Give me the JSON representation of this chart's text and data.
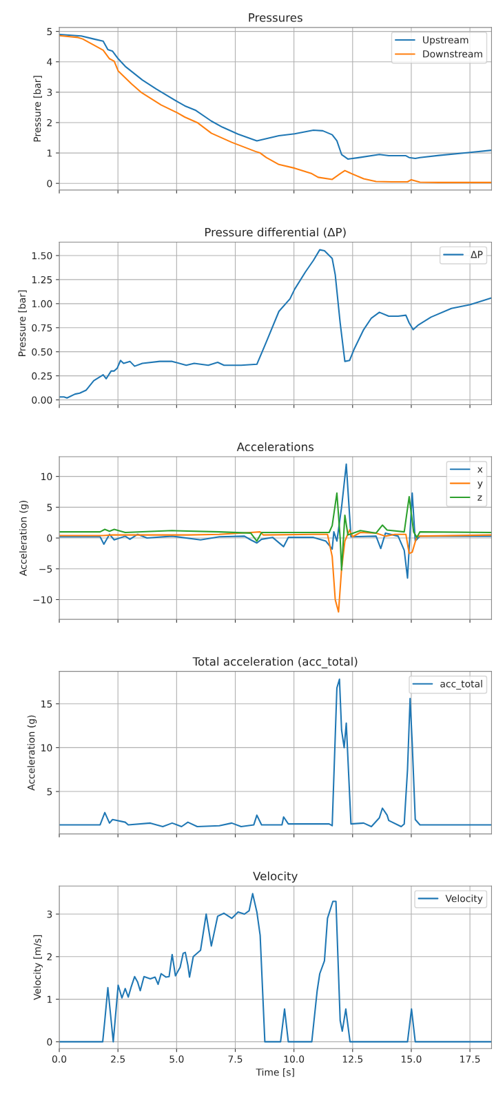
{
  "chart_data": [
    {
      "type": "line",
      "title": "Pressures",
      "ylabel": "Pressure [bar]",
      "xlim": [
        0,
        18.42
      ],
      "xticks": [
        {
          "value": 0,
          "label": null
        },
        {
          "value": 2.5,
          "label": null
        },
        {
          "value": 5,
          "label": null
        },
        {
          "value": 7.5,
          "label": null
        },
        {
          "value": 10,
          "label": null
        },
        {
          "value": 12.5,
          "label": null
        },
        {
          "value": 15,
          "label": null
        },
        {
          "value": 17.5,
          "label": null
        }
      ],
      "ylim": [
        -0.22,
        5.13
      ],
      "yticks": [
        0,
        1,
        2,
        3,
        4,
        5
      ],
      "tick_labels": "y",
      "grid": true,
      "legend": "top right",
      "series": [
        {
          "name": "Upstream",
          "color": "#1f77b4",
          "x": [
            0,
            0.94,
            1.47,
            1.87,
            2.07,
            2.27,
            2.51,
            2.81,
            3.54,
            4.14,
            5.01,
            5.35,
            5.82,
            6.48,
            6.95,
            7.62,
            8.42,
            9.36,
            10.03,
            10.83,
            11.23,
            11.63,
            11.83,
            12.03,
            12.3,
            12.7,
            13.64,
            14.04,
            14.77,
            14.91,
            15.17,
            15.37,
            16.18,
            17.51,
            18.42
          ],
          "values": [
            4.9,
            4.85,
            4.75,
            4.68,
            4.4,
            4.35,
            4.1,
            3.85,
            3.4,
            3.1,
            2.7,
            2.55,
            2.4,
            2.05,
            1.85,
            1.62,
            1.4,
            1.57,
            1.63,
            1.75,
            1.73,
            1.6,
            1.4,
            0.95,
            0.8,
            0.84,
            0.95,
            0.91,
            0.91,
            0.85,
            0.82,
            0.85,
            0.92,
            1.02,
            1.09
          ]
        },
        {
          "name": "Downstream",
          "color": "#ff7f0e",
          "x": [
            0,
            0.8,
            1.0,
            1.47,
            1.87,
            2.14,
            2.34,
            2.51,
            3.07,
            3.48,
            4.34,
            5.01,
            5.35,
            5.88,
            6.48,
            7.35,
            8.36,
            8.56,
            8.82,
            9.36,
            10.03,
            10.76,
            11.03,
            11.63,
            11.97,
            12.17,
            12.37,
            12.97,
            13.5,
            14.17,
            14.84,
            15.0,
            15.37,
            16.18,
            18.42
          ],
          "values": [
            4.86,
            4.8,
            4.75,
            4.55,
            4.38,
            4.1,
            4.02,
            3.7,
            3.28,
            3.0,
            2.58,
            2.33,
            2.18,
            2.0,
            1.65,
            1.35,
            1.05,
            1.0,
            0.85,
            0.62,
            0.5,
            0.32,
            0.2,
            0.13,
            0.32,
            0.42,
            0.35,
            0.15,
            0.06,
            0.05,
            0.05,
            0.12,
            0.04,
            0.03,
            0.03
          ]
        }
      ]
    },
    {
      "type": "line",
      "title": "Pressure differential (ΔP)",
      "ylabel": "Pressure [bar]",
      "xlim": [
        0,
        18.42
      ],
      "xticks": [
        {
          "value": 0,
          "label": null
        },
        {
          "value": 2.5,
          "label": null
        },
        {
          "value": 5,
          "label": null
        },
        {
          "value": 7.5,
          "label": null
        },
        {
          "value": 10,
          "label": null
        },
        {
          "value": 12.5,
          "label": null
        },
        {
          "value": 15,
          "label": null
        },
        {
          "value": 17.5,
          "label": null
        }
      ],
      "ylim": [
        -0.05,
        1.64
      ],
      "yticks": [
        {
          "value": 0,
          "label": "0.00"
        },
        {
          "value": 0.25,
          "label": "0.25"
        },
        {
          "value": 0.5,
          "label": "0.50"
        },
        {
          "value": 0.75,
          "label": "0.75"
        },
        {
          "value": 1,
          "label": "1.00"
        },
        {
          "value": 1.25,
          "label": "1.25"
        },
        {
          "value": 1.5,
          "label": "1.50"
        }
      ],
      "tick_labels": "y",
      "grid": true,
      "legend": "top right",
      "series": [
        {
          "name": "ΔP",
          "color": "#1f77b4",
          "x": [
            0,
            0.2,
            0.33,
            0.67,
            0.87,
            1.14,
            1.47,
            1.87,
            2.0,
            2.21,
            2.34,
            2.47,
            2.61,
            2.74,
            3.01,
            3.21,
            3.54,
            4.28,
            4.81,
            5.41,
            5.75,
            6.35,
            6.75,
            7.02,
            7.75,
            8.42,
            8.82,
            9.36,
            9.83,
            10.03,
            10.49,
            10.83,
            11.1,
            11.3,
            11.63,
            11.76,
            11.97,
            12.17,
            12.37,
            12.57,
            12.97,
            13.3,
            13.64,
            14.04,
            14.44,
            14.77,
            14.91,
            15.08,
            15.31,
            15.84,
            16.71,
            17.51,
            18.42
          ],
          "values": [
            0.03,
            0.03,
            0.02,
            0.06,
            0.07,
            0.1,
            0.2,
            0.26,
            0.22,
            0.3,
            0.3,
            0.33,
            0.41,
            0.38,
            0.4,
            0.35,
            0.38,
            0.4,
            0.4,
            0.36,
            0.38,
            0.36,
            0.39,
            0.36,
            0.36,
            0.37,
            0.6,
            0.92,
            1.05,
            1.15,
            1.33,
            1.45,
            1.56,
            1.55,
            1.47,
            1.3,
            0.8,
            0.4,
            0.41,
            0.53,
            0.73,
            0.85,
            0.91,
            0.87,
            0.87,
            0.88,
            0.8,
            0.73,
            0.78,
            0.86,
            0.95,
            0.99,
            1.06
          ]
        }
      ]
    },
    {
      "type": "line",
      "title": "Accelerations",
      "ylabel": "Acceleration (g)",
      "xlim": [
        0,
        18.42
      ],
      "xticks": [
        {
          "value": 0,
          "label": null
        },
        {
          "value": 2.5,
          "label": null
        },
        {
          "value": 5,
          "label": null
        },
        {
          "value": 7.5,
          "label": null
        },
        {
          "value": 10,
          "label": null
        },
        {
          "value": 12.5,
          "label": null
        },
        {
          "value": 15,
          "label": null
        },
        {
          "value": 17.5,
          "label": null
        }
      ],
      "ylim": [
        -13.2,
        13.2
      ],
      "yticks": [
        {
          "value": -10,
          "label": "−10"
        },
        {
          "value": -5,
          "label": "−5"
        },
        0,
        5,
        10
      ],
      "tick_labels": "y",
      "grid": true,
      "legend": "top right",
      "series": [
        {
          "name": "x",
          "color": "#1f77b4",
          "x": [
            0,
            1.74,
            1.9,
            2.14,
            2.34,
            2.81,
            3.01,
            3.34,
            3.74,
            4.81,
            6.02,
            6.82,
            7.89,
            8.16,
            8.42,
            8.62,
            9.09,
            9.56,
            9.76,
            10.83,
            11.36,
            11.63,
            11.7,
            11.83,
            12.03,
            12.23,
            12.43,
            13.5,
            13.7,
            13.9,
            14.44,
            14.7,
            14.84,
            15.04,
            15.17,
            15.37,
            18.42
          ],
          "values": [
            0.2,
            0.2,
            -1.0,
            0.6,
            -0.3,
            0.3,
            -0.2,
            0.6,
            0,
            0.3,
            -0.3,
            0.2,
            0.3,
            -0.3,
            -0.8,
            -0.2,
            0.1,
            -1.4,
            0.1,
            0.1,
            -0.5,
            -1.8,
            1.0,
            -0.5,
            5,
            12,
            0.2,
            0.3,
            -1.7,
            0.8,
            0.3,
            -2,
            -6.5,
            7.3,
            -0.5,
            0.3,
            0.3
          ]
        },
        {
          "name": "y",
          "color": "#ff7f0e",
          "x": [
            0,
            1.87,
            2.27,
            5.48,
            6.82,
            8.16,
            8.56,
            8.69,
            10.83,
            11.43,
            11.63,
            11.76,
            11.9,
            12.03,
            12.17,
            12.37,
            12.5,
            12.83,
            13.5,
            13.9,
            14.3,
            14.77,
            14.91,
            15.04,
            15.24,
            18.42
          ],
          "values": [
            0.4,
            0.4,
            0.5,
            0.5,
            0.6,
            0.9,
            1.0,
            0.5,
            0.6,
            0.6,
            -3,
            -10,
            -12,
            -5,
            -0.5,
            1.3,
            0.2,
            0.9,
            0.8,
            0.3,
            0.6,
            0.6,
            -2.5,
            -2.3,
            0.3,
            0.5
          ]
        },
        {
          "name": "z",
          "color": "#2ca02c",
          "x": [
            0,
            1.74,
            1.94,
            2.14,
            2.34,
            2.81,
            4.81,
            6.82,
            8.16,
            8.42,
            8.62,
            10.83,
            11.5,
            11.63,
            11.83,
            11.97,
            12.03,
            12.17,
            12.3,
            12.83,
            13.5,
            13.77,
            13.97,
            14.7,
            14.91,
            15.1,
            15.24,
            15.37,
            18.42
          ],
          "values": [
            1.0,
            1.0,
            1.4,
            1.1,
            1.4,
            0.9,
            1.2,
            1.0,
            0.8,
            -0.5,
            0.9,
            0.9,
            0.9,
            2,
            7.3,
            0,
            -5.2,
            3.7,
            0.5,
            1.2,
            0.8,
            2.1,
            1.3,
            1.0,
            6.7,
            1.0,
            0.1,
            1.0,
            0.9
          ]
        }
      ]
    },
    {
      "type": "line",
      "title": "Total acceleration (acc_total)",
      "ylabel": "Acceleration (g)",
      "xlim": [
        0,
        18.42
      ],
      "xticks": [
        {
          "value": 0,
          "label": null
        },
        {
          "value": 2.5,
          "label": null
        },
        {
          "value": 5,
          "label": null
        },
        {
          "value": 7.5,
          "label": null
        },
        {
          "value": 10,
          "label": null
        },
        {
          "value": 12.5,
          "label": null
        },
        {
          "value": 15,
          "label": null
        },
        {
          "value": 17.5,
          "label": null
        }
      ],
      "ylim": [
        0.16,
        18.7
      ],
      "yticks": [
        5,
        10,
        15
      ],
      "tick_labels": "y",
      "grid": true,
      "legend": "top right",
      "series": [
        {
          "name": "acc_total",
          "color": "#1f77b4",
          "x": [
            0,
            1.74,
            1.94,
            2.14,
            2.27,
            2.81,
            2.94,
            3.88,
            4.41,
            4.81,
            5.21,
            5.48,
            5.88,
            6.82,
            7.35,
            7.75,
            8.29,
            8.42,
            8.62,
            9.49,
            9.56,
            9.76,
            11.5,
            11.63,
            11.83,
            11.94,
            12.03,
            12.14,
            12.23,
            12.43,
            12.97,
            13.3,
            13.64,
            13.77,
            13.97,
            14.04,
            14.57,
            14.7,
            14.84,
            14.95,
            15.04,
            15.17,
            15.37,
            18.42
          ],
          "values": [
            1.2,
            1.2,
            2.6,
            1.4,
            1.8,
            1.5,
            1.2,
            1.4,
            1.0,
            1.4,
            1.0,
            1.5,
            1.0,
            1.1,
            1.4,
            1.0,
            1.2,
            2.3,
            1.2,
            1.2,
            2.1,
            1.3,
            1.3,
            1.1,
            16.8,
            17.8,
            12.0,
            10.0,
            12.8,
            1.3,
            1.4,
            1.0,
            2.0,
            3.1,
            2.3,
            1.7,
            1.0,
            1.3,
            7.5,
            15.6,
            10.5,
            1.8,
            1.2,
            1.2
          ]
        }
      ]
    },
    {
      "type": "line",
      "title": "Velocity",
      "xlabel": "Time [s]",
      "ylabel": "Velocity [m/s]",
      "xlim": [
        0,
        18.42
      ],
      "xticks": [
        {
          "value": 0,
          "label": "0.0"
        },
        {
          "value": 2.5,
          "label": "2.5"
        },
        {
          "value": 5,
          "label": "5.0"
        },
        {
          "value": 7.5,
          "label": "7.5"
        },
        {
          "value": 10,
          "label": "10.0"
        },
        {
          "value": 12.5,
          "label": "12.5"
        },
        {
          "value": 15,
          "label": "15.0"
        },
        {
          "value": 17.5,
          "label": "17.5"
        }
      ],
      "ylim": [
        -0.16,
        3.66
      ],
      "yticks": [
        0,
        1,
        2,
        3
      ],
      "grid": true,
      "legend": "top right",
      "series": [
        {
          "name": "Velocity",
          "color": "#1f77b4",
          "x": [
            0,
            1.85,
            1.94,
            2.07,
            2.21,
            2.3,
            2.51,
            2.67,
            2.81,
            2.94,
            3.07,
            3.21,
            3.34,
            3.45,
            3.61,
            3.88,
            4.08,
            4.21,
            4.34,
            4.54,
            4.68,
            4.81,
            4.95,
            5.15,
            5.28,
            5.37,
            5.48,
            5.55,
            5.71,
            6.02,
            6.26,
            6.48,
            6.75,
            7.02,
            7.35,
            7.62,
            7.89,
            8.09,
            8.24,
            8.42,
            8.56,
            8.76,
            9.43,
            9.6,
            9.76,
            10.76,
            10.99,
            11.1,
            11.3,
            11.43,
            11.66,
            11.79,
            11.97,
            12.06,
            12.21,
            12.39,
            14.84,
            15.01,
            15.17,
            18.42
          ],
          "values": [
            0,
            0,
            0.5,
            1.27,
            0.5,
            0,
            1.33,
            1.03,
            1.25,
            1.05,
            1.3,
            1.53,
            1.4,
            1.2,
            1.53,
            1.48,
            1.52,
            1.35,
            1.6,
            1.52,
            1.53,
            2.05,
            1.55,
            1.75,
            2.08,
            2.1,
            1.8,
            1.52,
            2.0,
            2.15,
            3.0,
            2.25,
            2.95,
            3.02,
            2.9,
            3.05,
            3.0,
            3.08,
            3.48,
            3.05,
            2.5,
            0,
            0,
            0.77,
            0,
            0,
            1.2,
            1.6,
            1.9,
            2.9,
            3.3,
            3.3,
            0.5,
            0.25,
            0.77,
            0,
            0,
            0.77,
            0,
            0
          ]
        }
      ]
    }
  ]
}
